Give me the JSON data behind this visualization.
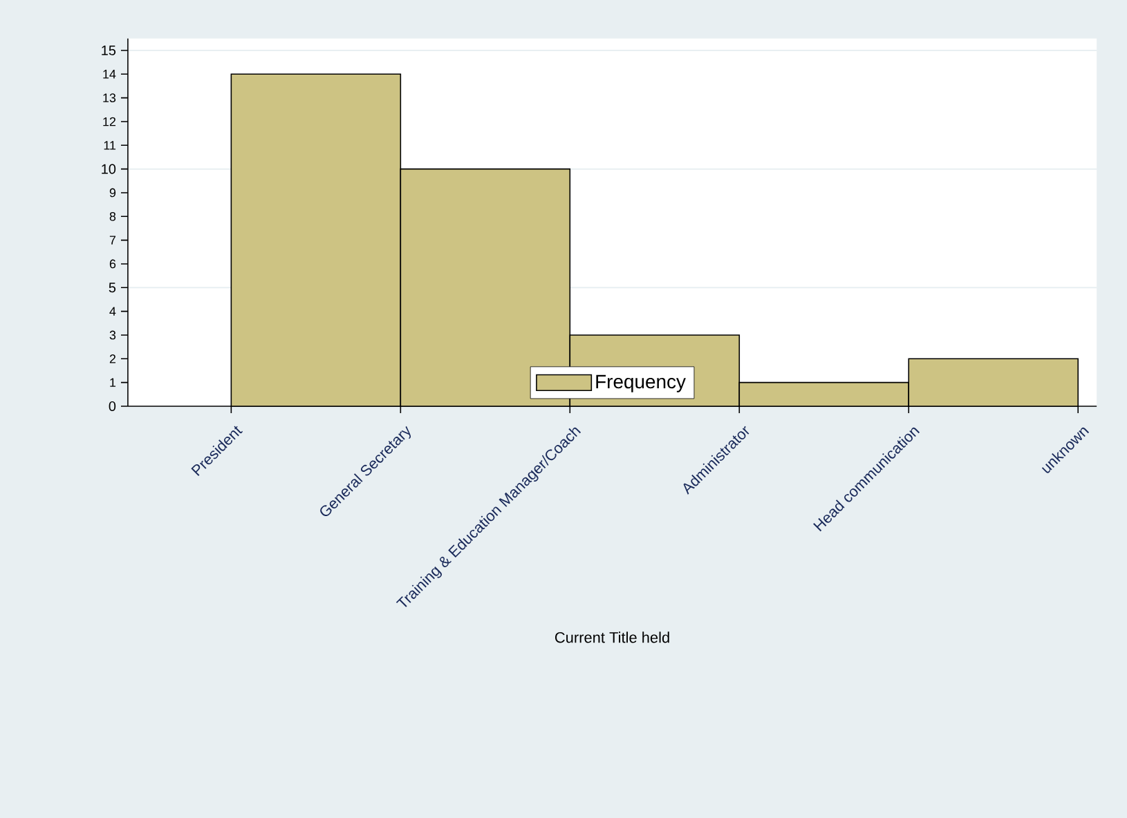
{
  "chart_data": {
    "type": "bar",
    "xlabel": "Current Title held",
    "categories": [
      "President",
      "General Secretary",
      "Training & Education Manager/Coach",
      "Administrator",
      "Head communication",
      "unknown"
    ],
    "series": [
      {
        "name": "Frequency",
        "color": "#cdc383",
        "values": [
          14,
          10,
          3,
          1,
          2,
          null
        ]
      }
    ],
    "ylim": [
      0,
      15.5
    ],
    "yticks": [
      0,
      1,
      2,
      3,
      4,
      5,
      6,
      7,
      8,
      9,
      10,
      11,
      12,
      13,
      14,
      15
    ],
    "grid": "y",
    "legend": "bottom"
  }
}
